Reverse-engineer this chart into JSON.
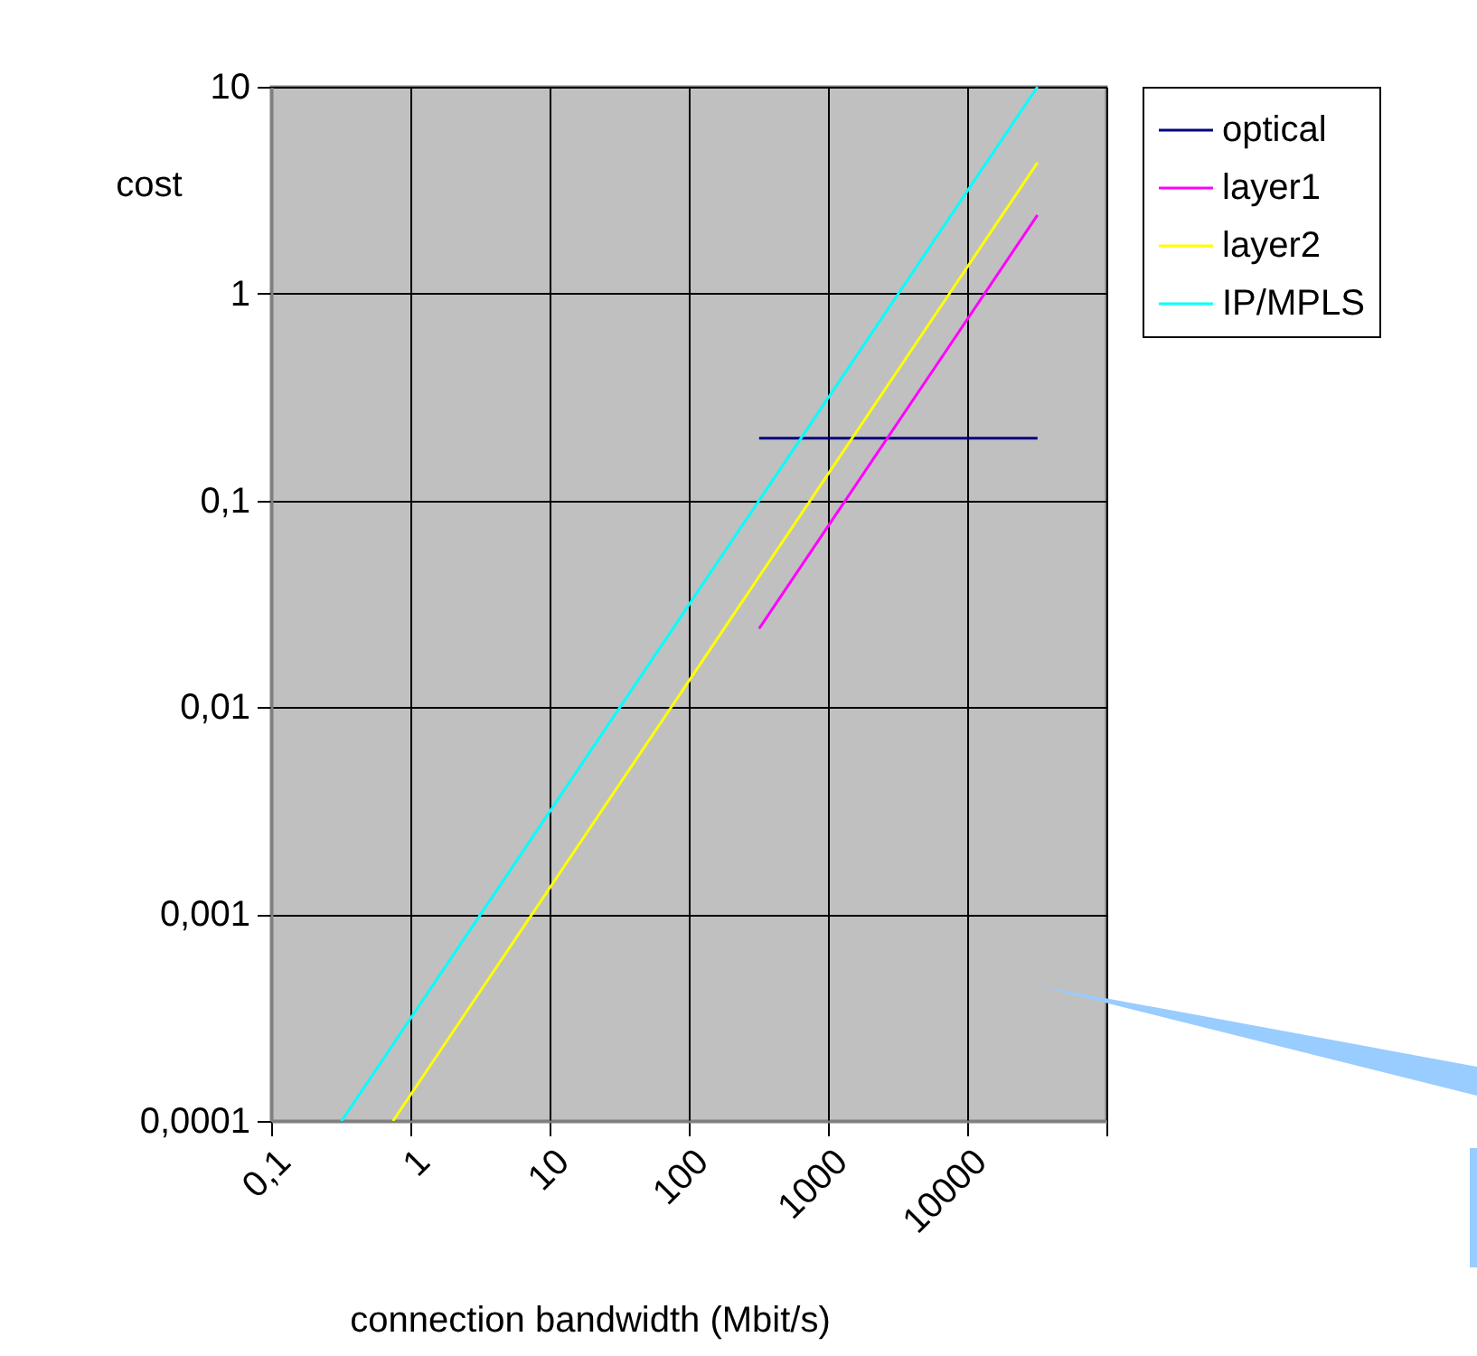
{
  "chart_data": {
    "type": "line",
    "xlabel": "connection bandwidth (Mbit/s)",
    "ylabel": "cost",
    "log": "xy",
    "grid": true,
    "legend": "right",
    "xlim": [
      0.1,
      100000
    ],
    "ylim": [
      0.0001,
      10
    ],
    "xticks": [
      {
        "value": 0.1,
        "label": "0,1"
      },
      1,
      10,
      100,
      1000,
      10000,
      {
        "value": 100000,
        "label": null
      }
    ],
    "yticks": [
      {
        "value": 0.0001,
        "label": "0,0001"
      },
      {
        "value": 0.001,
        "label": "0,001"
      },
      {
        "value": 0.01,
        "label": "0,01"
      },
      {
        "value": 0.1,
        "label": "0,1"
      },
      1,
      10
    ],
    "series": [
      {
        "name": "optical",
        "color": "#000080",
        "x": [
          320,
          32000
        ],
        "values": [
          0.2,
          0.2
        ]
      },
      {
        "name": "layer1",
        "color": "#ff00ff",
        "x": [
          320,
          32000
        ],
        "values": [
          0.024,
          2.4
        ]
      },
      {
        "name": "layer2",
        "color": "#ffff00",
        "x": [
          0.75,
          32000
        ],
        "values": [
          0.0001,
          4.3
        ]
      },
      {
        "name": "IP/MPLS",
        "color": "#00ffff",
        "x": [
          0.32,
          32000
        ],
        "values": [
          0.0001,
          10
        ]
      }
    ]
  }
}
